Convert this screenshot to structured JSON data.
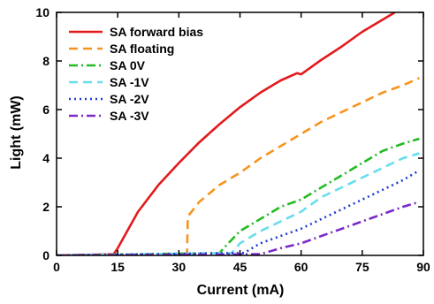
{
  "chart_data": {
    "type": "line",
    "xlabel": "Current (mA)",
    "ylabel": "Light (mW)",
    "xlim": [
      0,
      90
    ],
    "ylim": [
      0,
      10
    ],
    "xticks": [
      0,
      15,
      30,
      45,
      60,
      75,
      90
    ],
    "yticks": [
      0,
      2,
      4,
      6,
      8,
      10
    ],
    "x_tick_labels": [
      "0",
      "15",
      "30",
      "45",
      "60",
      "75",
      "90"
    ],
    "y_tick_labels": [
      "0",
      "2",
      "4",
      "6",
      "8",
      "10"
    ],
    "grid": false,
    "legend_position": "top-left",
    "series": [
      {
        "name": "SA forward bias",
        "color": "#e31a1c",
        "dash": "solid",
        "points": [
          [
            0,
            0
          ],
          [
            14,
            0.05
          ],
          [
            15,
            0.3
          ],
          [
            20,
            1.8
          ],
          [
            25,
            2.9
          ],
          [
            30,
            3.8
          ],
          [
            35,
            4.65
          ],
          [
            40,
            5.4
          ],
          [
            45,
            6.1
          ],
          [
            50,
            6.7
          ],
          [
            55,
            7.2
          ],
          [
            59,
            7.5
          ],
          [
            60,
            7.45
          ],
          [
            65,
            8.05
          ],
          [
            70,
            8.6
          ],
          [
            75,
            9.2
          ],
          [
            80,
            9.7
          ],
          [
            83,
            10.0
          ]
        ]
      },
      {
        "name": "SA floating",
        "color": "#f7941d",
        "dash": "dash",
        "points": [
          [
            0,
            0
          ],
          [
            32,
            0.05
          ],
          [
            32.2,
            1.6
          ],
          [
            35,
            2.2
          ],
          [
            40,
            2.9
          ],
          [
            45,
            3.4
          ],
          [
            50,
            4.0
          ],
          [
            55,
            4.5
          ],
          [
            60,
            5.0
          ],
          [
            65,
            5.5
          ],
          [
            70,
            5.9
          ],
          [
            75,
            6.3
          ],
          [
            80,
            6.7
          ],
          [
            85,
            7.0
          ],
          [
            89,
            7.3
          ]
        ]
      },
      {
        "name": "SA 0V",
        "color": "#22bb22",
        "dash": "dashdot",
        "points": [
          [
            0,
            0
          ],
          [
            40,
            0.1
          ],
          [
            41,
            0.3
          ],
          [
            45,
            1.0
          ],
          [
            50,
            1.5
          ],
          [
            55,
            2.0
          ],
          [
            60,
            2.3
          ],
          [
            65,
            2.8
          ],
          [
            70,
            3.3
          ],
          [
            75,
            3.8
          ],
          [
            80,
            4.3
          ],
          [
            85,
            4.6
          ],
          [
            89,
            4.8
          ]
        ]
      },
      {
        "name": "SA -1V",
        "color": "#66ddee",
        "dash": "dash",
        "points": [
          [
            0,
            0
          ],
          [
            43,
            0.1
          ],
          [
            45,
            0.5
          ],
          [
            50,
            1.0
          ],
          [
            55,
            1.4
          ],
          [
            60,
            1.8
          ],
          [
            65,
            2.4
          ],
          [
            70,
            2.8
          ],
          [
            75,
            3.2
          ],
          [
            80,
            3.6
          ],
          [
            85,
            4.0
          ],
          [
            89,
            4.2
          ]
        ]
      },
      {
        "name": "SA -2V",
        "color": "#1f3bd6",
        "dash": "dot",
        "points": [
          [
            0,
            0
          ],
          [
            46,
            0.1
          ],
          [
            48,
            0.3
          ],
          [
            50,
            0.5
          ],
          [
            55,
            0.8
          ],
          [
            60,
            1.1
          ],
          [
            65,
            1.5
          ],
          [
            70,
            1.9
          ],
          [
            75,
            2.3
          ],
          [
            80,
            2.7
          ],
          [
            85,
            3.1
          ],
          [
            89,
            3.5
          ]
        ]
      },
      {
        "name": "SA -3V",
        "color": "#7b2ac8",
        "dash": "dashdot",
        "points": [
          [
            0,
            0
          ],
          [
            50,
            0.05
          ],
          [
            55,
            0.3
          ],
          [
            60,
            0.5
          ],
          [
            65,
            0.8
          ],
          [
            70,
            1.1
          ],
          [
            75,
            1.4
          ],
          [
            80,
            1.7
          ],
          [
            85,
            2.0
          ],
          [
            89,
            2.2
          ]
        ]
      }
    ]
  }
}
